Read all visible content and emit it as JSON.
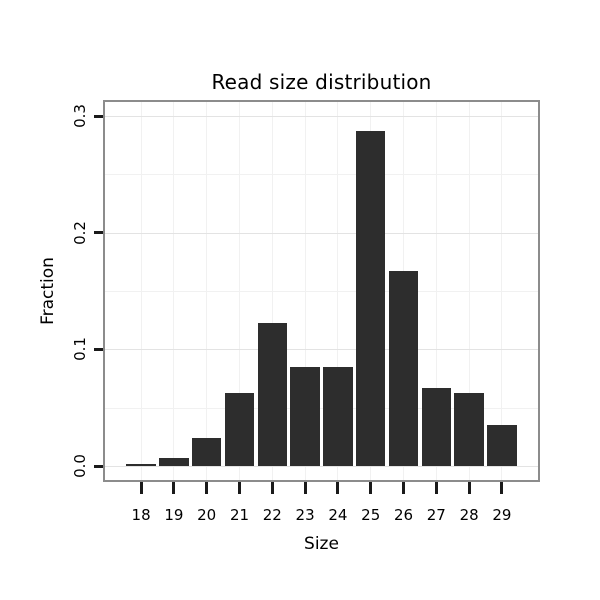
{
  "chart_data": {
    "type": "bar",
    "title": "Read size distribution",
    "xlabel": "Size",
    "ylabel": "Fraction",
    "categories": [
      "18",
      "19",
      "20",
      "21",
      "22",
      "23",
      "24",
      "25",
      "26",
      "27",
      "28",
      "29"
    ],
    "values": [
      0.002,
      0.007,
      0.024,
      0.063,
      0.123,
      0.085,
      0.085,
      0.287,
      0.167,
      0.067,
      0.063,
      0.035
    ],
    "ylim": [
      0,
      0.3
    ],
    "yticks": [
      0,
      0.1,
      0.2,
      0.3
    ],
    "ytick_labels": [
      "0.0",
      "0.1",
      "0.2",
      "0.3"
    ],
    "yticks_minor": [
      0.05,
      0.15,
      0.25
    ],
    "grid": true,
    "legend": "none",
    "bar_color": "#2d2d2d",
    "panel_border_color": "#8c8c8c",
    "grid_major_color": "#e3e3e3",
    "grid_minor_color": "#f1f1f1"
  }
}
